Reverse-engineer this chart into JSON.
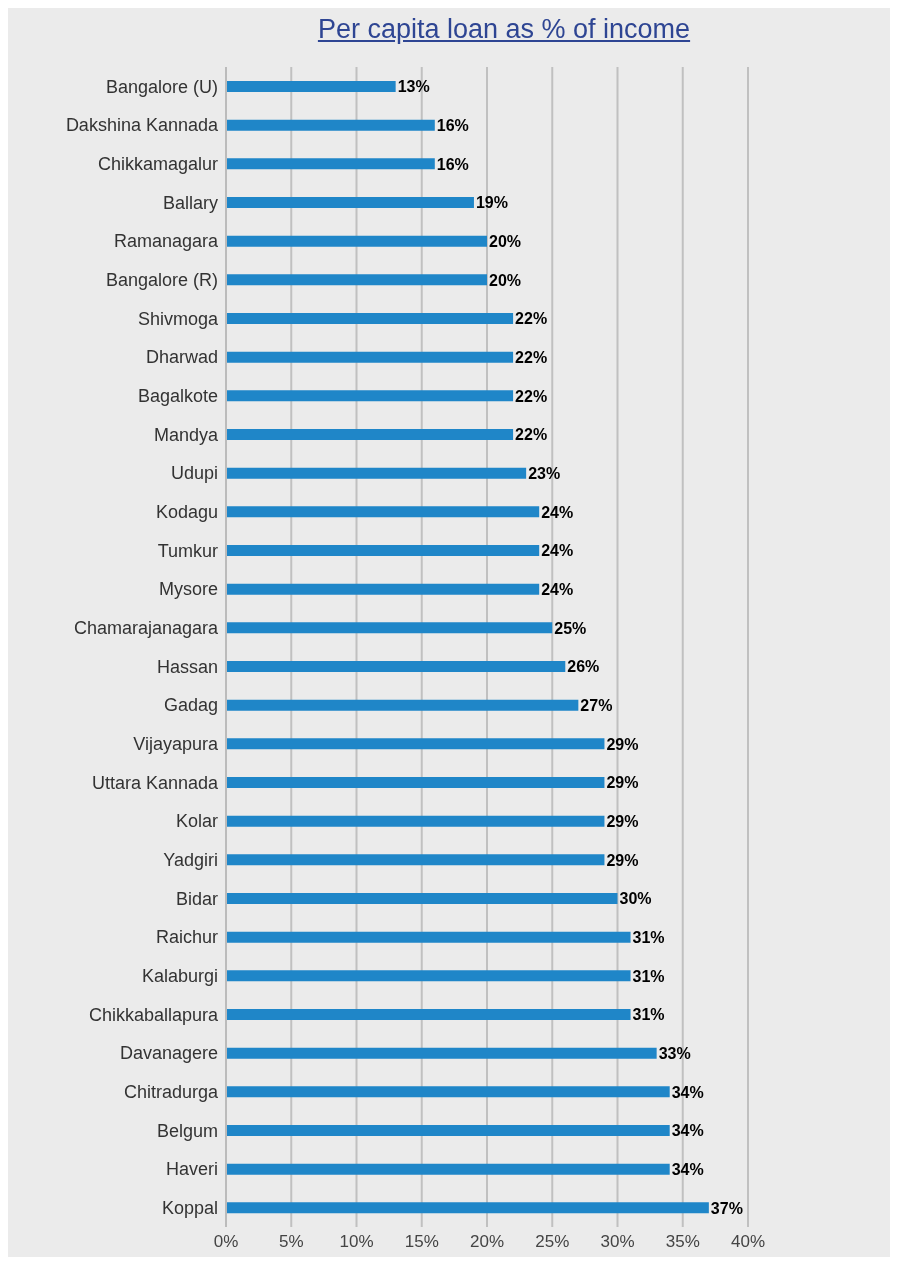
{
  "chart_data": {
    "type": "bar",
    "orientation": "horizontal",
    "title": "Per capita loan as % of income",
    "categories": [
      "Bangalore (U)",
      "Dakshina Kannada",
      "Chikkamagalur",
      "Ballary",
      "Ramanagara",
      "Bangalore (R)",
      "Shivmoga",
      "Dharwad",
      "Bagalkote",
      "Mandya",
      "Udupi",
      "Kodagu",
      "Tumkur",
      "Mysore",
      "Chamarajanagara",
      "Hassan",
      "Gadag",
      "Vijayapura",
      "Uttara Kannada",
      "Kolar",
      "Yadgiri",
      "Bidar",
      "Raichur",
      "Kalaburgi",
      "Chikkaballapura",
      "Davanagere",
      "Chitradurga",
      "Belgum",
      "Haveri",
      "Koppal"
    ],
    "values": [
      13,
      16,
      16,
      19,
      20,
      20,
      22,
      22,
      22,
      22,
      23,
      24,
      24,
      24,
      25,
      26,
      27,
      29,
      29,
      29,
      29,
      30,
      31,
      31,
      31,
      33,
      34,
      34,
      34,
      37
    ],
    "value_labels": [
      "13%",
      "16%",
      "16%",
      "19%",
      "20%",
      "20%",
      "22%",
      "22%",
      "22%",
      "22%",
      "23%",
      "24%",
      "24%",
      "24%",
      "25%",
      "26%",
      "27%",
      "29%",
      "29%",
      "29%",
      "29%",
      "30%",
      "31%",
      "31%",
      "31%",
      "33%",
      "34%",
      "34%",
      "34%",
      "37%"
    ],
    "color": "#1f86c8",
    "xlim": [
      0,
      40
    ],
    "xticks": [
      {
        "value": 0,
        "label": "0%"
      },
      {
        "value": 5,
        "label": "5%"
      },
      {
        "value": 10,
        "label": "10%"
      },
      {
        "value": 15,
        "label": "15%"
      },
      {
        "value": 20,
        "label": "20%"
      },
      {
        "value": 25,
        "label": "25%"
      },
      {
        "value": 30,
        "label": "30%"
      },
      {
        "value": 35,
        "label": "35%"
      },
      {
        "value": 40,
        "label": "40%"
      }
    ],
    "grid": "x"
  }
}
